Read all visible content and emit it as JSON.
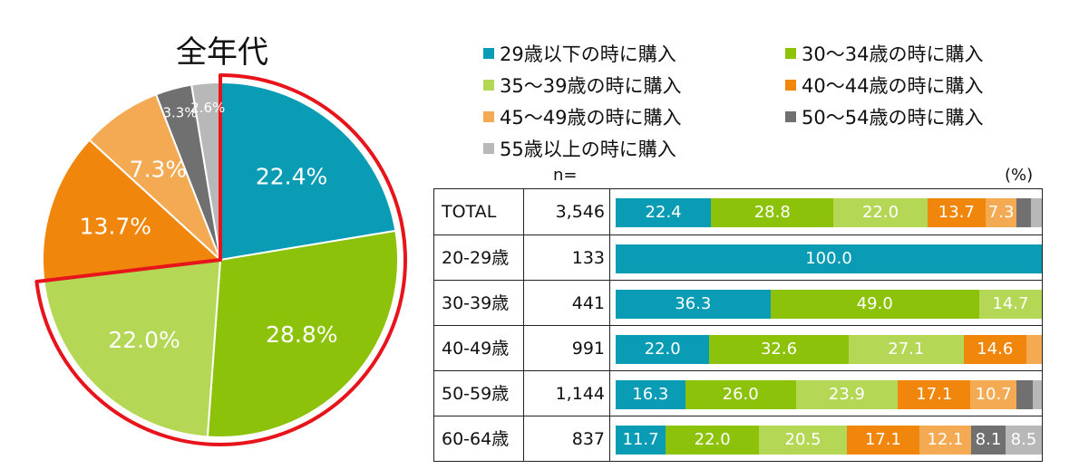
{
  "colors": [
    "#0a9bb5",
    "#8cc20a",
    "#b4d755",
    "#f0870c",
    "#f4aa52",
    "#707070",
    "#b8b8b8"
  ],
  "chart_data": [
    {
      "type": "pie",
      "title": "全年代",
      "slices": [
        {
          "category": "29歳以下の時に購入",
          "value": 22.4,
          "label": "22.4%"
        },
        {
          "category": "30〜34歳の時に購入",
          "value": 28.8,
          "label": "28.8%"
        },
        {
          "category": "35〜39歳の時に購入",
          "value": 22.0,
          "label": "22.0%"
        },
        {
          "category": "40〜44歳の時に購入",
          "value": 13.7,
          "label": "13.7%"
        },
        {
          "category": "45〜49歳の時に購入",
          "value": 7.3,
          "label": "7.3%"
        },
        {
          "category": "50〜54歳の時に購入",
          "value": 3.3,
          "label": "3.3%"
        },
        {
          "category": "55歳以上の時に購入",
          "value": 2.6,
          "label": "2.6%"
        }
      ],
      "highlight": "29歳以下 + 30〜34歳 + 35〜39歳 (red outline)"
    },
    {
      "type": "bar",
      "stacked": true,
      "orientation": "horizontal",
      "n_header": "n=",
      "unit_label": "(%)",
      "series_names": [
        "29歳以下の時に購入",
        "30〜34歳の時に購入",
        "35〜39歳の時に購入",
        "40〜44歳の時に購入",
        "45〜49歳の時に購入",
        "50〜54歳の時に購入",
        "55歳以上の時に購入"
      ],
      "rows": [
        {
          "label": "TOTAL",
          "n": "3,546",
          "values": [
            22.4,
            28.8,
            22.0,
            13.7,
            7.3,
            3.3,
            2.6
          ],
          "labels": [
            "22.4",
            "28.8",
            "22.0",
            "13.7",
            "7.3",
            "",
            ""
          ]
        },
        {
          "label": "20-29歳",
          "n": "133",
          "values": [
            100.0,
            0,
            0,
            0,
            0,
            0,
            0
          ],
          "labels": [
            "100.0",
            "",
            "",
            "",
            "",
            "",
            ""
          ]
        },
        {
          "label": "30-39歳",
          "n": "441",
          "values": [
            36.3,
            49.0,
            14.7,
            0,
            0,
            0,
            0
          ],
          "labels": [
            "36.3",
            "49.0",
            "14.7",
            "",
            "",
            "",
            ""
          ]
        },
        {
          "label": "40-49歳",
          "n": "991",
          "values": [
            22.0,
            32.6,
            27.1,
            14.6,
            3.7,
            0,
            0
          ],
          "labels": [
            "22.0",
            "32.6",
            "27.1",
            "14.6",
            "",
            "",
            ""
          ]
        },
        {
          "label": "50-59歳",
          "n": "1,144",
          "values": [
            16.3,
            26.0,
            23.9,
            17.1,
            10.7,
            3.9,
            2.1
          ],
          "labels": [
            "16.3",
            "26.0",
            "23.9",
            "17.1",
            "10.7",
            "",
            ""
          ]
        },
        {
          "label": "60-64歳",
          "n": "837",
          "values": [
            11.7,
            22.0,
            20.5,
            17.1,
            12.1,
            8.1,
            8.5
          ],
          "labels": [
            "11.7",
            "22.0",
            "20.5",
            "17.1",
            "12.1",
            "8.1",
            "8.5"
          ]
        }
      ]
    }
  ]
}
